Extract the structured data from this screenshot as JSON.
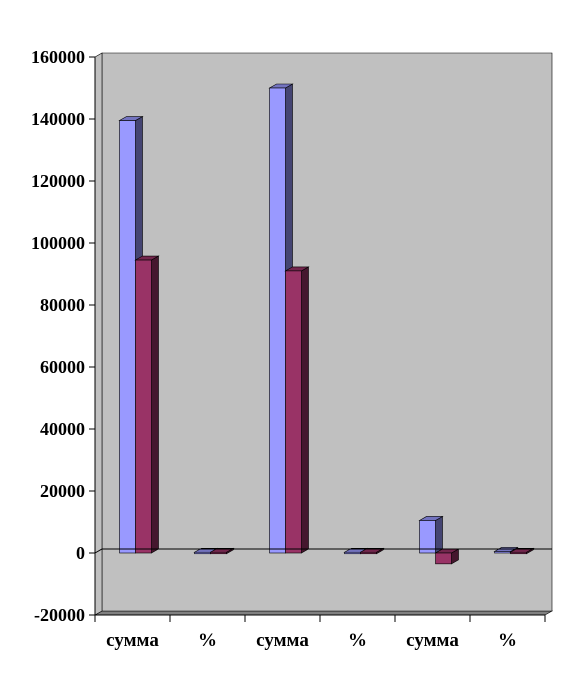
{
  "chart_data": {
    "type": "bar",
    "style": "3d-clustered-column",
    "categories": [
      "сумма",
      "%",
      "сумма",
      "%",
      "сумма",
      "%"
    ],
    "series": [
      {
        "values": [
          139500,
          0,
          150000,
          0,
          10500,
          500
        ],
        "color": "#9999ff"
      },
      {
        "values": [
          94500,
          0,
          91000,
          0,
          -3500,
          0
        ],
        "color": "#993366"
      }
    ],
    "ylim": [
      -20000,
      160000
    ],
    "yticks": [
      "-20000",
      "0",
      "20000",
      "40000",
      "60000",
      "80000",
      "100000",
      "120000",
      "140000",
      "160000"
    ],
    "grid": false,
    "legend": "none",
    "title": "",
    "xlabel": "",
    "ylabel": "",
    "colors": {
      "wall": "#c0c0c0",
      "floor": "#808080",
      "axis": "#000000"
    }
  }
}
